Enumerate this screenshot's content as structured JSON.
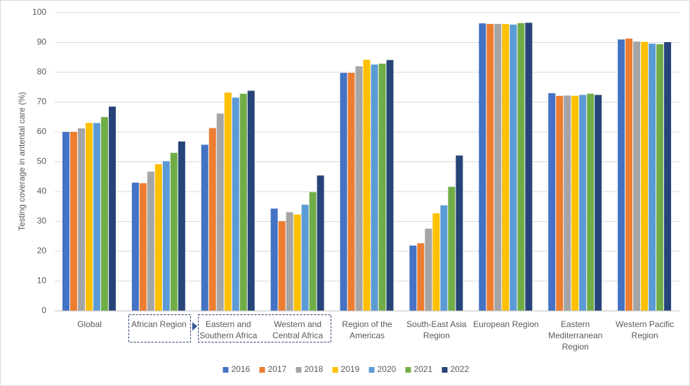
{
  "chart_data": {
    "type": "bar",
    "y_label": "Testing coverage in antental care (%)",
    "categories": [
      "Global",
      "African Region",
      "Eastern and Southern Africa",
      "Western and Central Africa",
      "Region of the Americas",
      "South-East Asia Region",
      "European Region",
      "Eastern Mediterranean Region",
      "Western Pacific Region"
    ],
    "series": [
      {
        "name": "2016",
        "color": "#4472c4",
        "values": [
          60,
          43,
          55.7,
          34.3,
          79.8,
          21.9,
          96.4,
          73,
          91
        ]
      },
      {
        "name": "2017",
        "color": "#ed7d31",
        "values": [
          60,
          42.8,
          61.3,
          30.1,
          79.8,
          22.7,
          96.2,
          72.1,
          91.3
        ]
      },
      {
        "name": "2018",
        "color": "#a5a5a5",
        "values": [
          61.2,
          46.7,
          66.2,
          33.1,
          82,
          27.6,
          96.2,
          72.2,
          90.3
        ]
      },
      {
        "name": "2019",
        "color": "#ffc000",
        "values": [
          63,
          49.2,
          73.2,
          32.3,
          84.2,
          32.7,
          96.2,
          72.1,
          90.2
        ]
      },
      {
        "name": "2020",
        "color": "#5b9bd5",
        "values": [
          63,
          50.2,
          71.5,
          35.6,
          82.6,
          35.4,
          96,
          72.4,
          89.6
        ]
      },
      {
        "name": "2021",
        "color": "#70ad47",
        "values": [
          65,
          53,
          72.8,
          39.8,
          82.9,
          41.6,
          96.5,
          72.8,
          89.4
        ]
      },
      {
        "name": "2022",
        "color": "#264478",
        "values": [
          68.5,
          56.8,
          73.8,
          45.4,
          84.1,
          52.1,
          96.6,
          72.4,
          90.1
        ]
      }
    ],
    "ylim": [
      0,
      100
    ],
    "yticks": [
      0,
      10,
      20,
      30,
      40,
      50,
      60,
      70,
      80,
      90,
      100
    ],
    "grid": true,
    "legend": "bottom"
  }
}
